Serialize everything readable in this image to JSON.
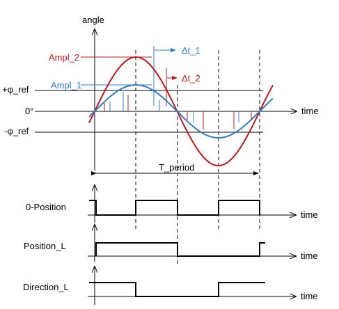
{
  "colors": {
    "ampl1": "#2e7bc4",
    "ampl2": "#c0141c",
    "ink": "#000000"
  },
  "analog": {
    "y_label": "angle",
    "x_label": "time",
    "ampl2_label": "Ampl_2",
    "ampl1_label": "Ampl_1",
    "phi_pos_label": "+φ_ref",
    "zero_label": "0°",
    "phi_neg_label": "-φ_ref",
    "dt1_label": "Δt_1",
    "dt2_label": "Δt_2",
    "period_label": "T_period"
  },
  "signals": [
    {
      "name": "0-Position",
      "x_label": "time"
    },
    {
      "name": "Position_L",
      "x_label": "time"
    },
    {
      "name": "Direction_L",
      "x_label": "time"
    }
  ]
}
